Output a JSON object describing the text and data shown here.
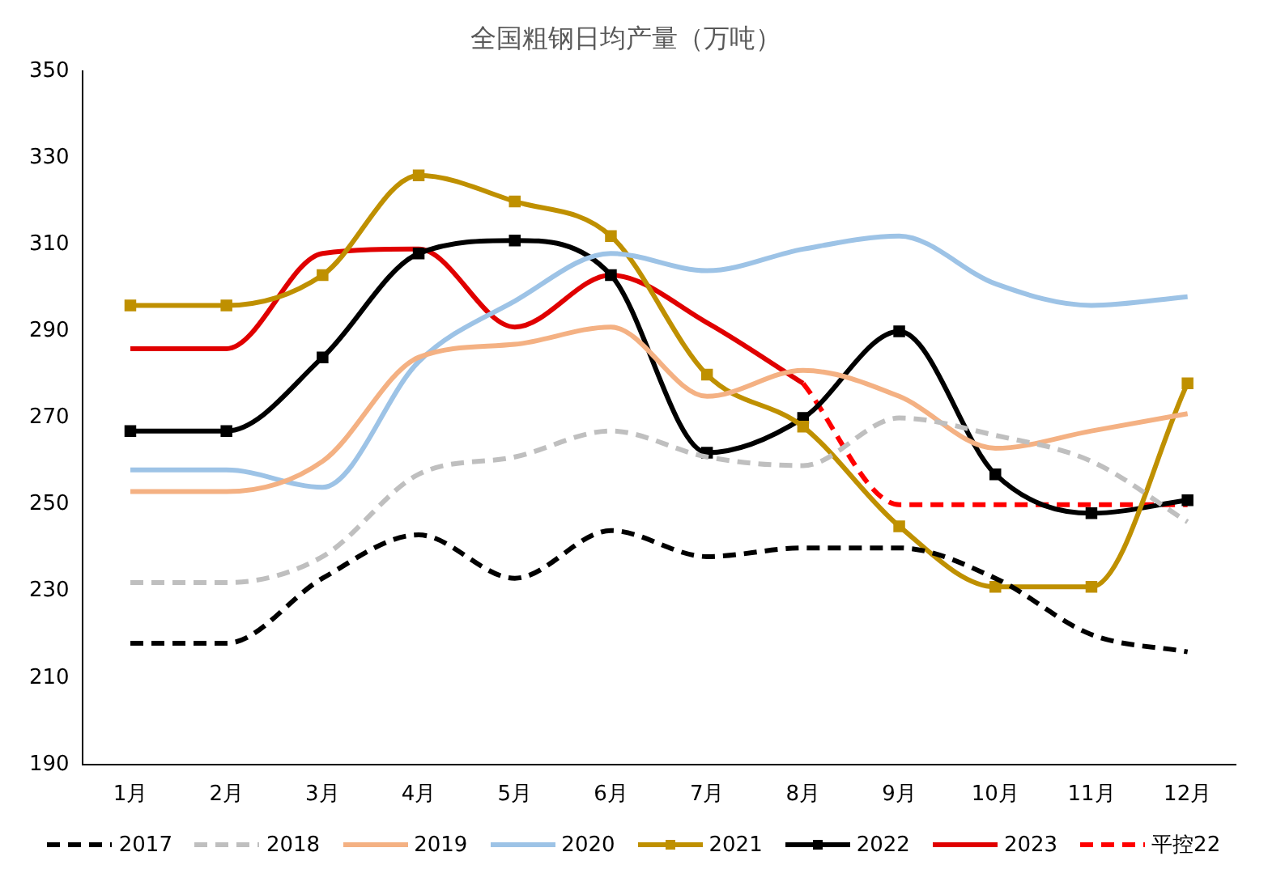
{
  "chart_data": {
    "type": "line",
    "title": "全国粗钢日均产量（万吨）",
    "categories": [
      "1月",
      "2月",
      "3月",
      "4月",
      "5月",
      "6月",
      "7月",
      "8月",
      "9月",
      "10月",
      "11月",
      "12月"
    ],
    "series": [
      {
        "name": "2017",
        "color": "#000000",
        "line_style": "dashed",
        "values": [
          218,
          218,
          233,
          243,
          233,
          244,
          238,
          240,
          240,
          233,
          220,
          216
        ]
      },
      {
        "name": "2018",
        "color": "#bfbfbf",
        "line_style": "dashed",
        "values": [
          232,
          232,
          238,
          257,
          261,
          267,
          261,
          259,
          270,
          266,
          260,
          246
        ]
      },
      {
        "name": "2019",
        "color": "#f4b183",
        "values": [
          253,
          253,
          260,
          284,
          287,
          291,
          275,
          281,
          275,
          263,
          267,
          271
        ]
      },
      {
        "name": "2020",
        "color": "#9dc3e6",
        "values": [
          258,
          258,
          254,
          283,
          297,
          308,
          304,
          309,
          312,
          301,
          296,
          298
        ]
      },
      {
        "name": "2021",
        "color": "#bf9000",
        "marker": "square",
        "values": [
          296,
          296,
          303,
          326,
          320,
          312,
          280,
          268,
          245,
          231,
          231,
          278
        ]
      },
      {
        "name": "2022",
        "color": "#000000",
        "marker": "square",
        "values": [
          267,
          267,
          284,
          308,
          311,
          303,
          262,
          270,
          290,
          257,
          248,
          251
        ]
      },
      {
        "name": "2023",
        "color": "#e00000",
        "values": [
          286,
          286,
          308,
          309,
          291,
          303,
          292,
          278,
          null,
          null,
          null,
          null
        ]
      },
      {
        "name": "平控22",
        "color": "#ff0000",
        "line_style": "dashed",
        "values": [
          null,
          null,
          null,
          null,
          null,
          null,
          null,
          278,
          250,
          250,
          250,
          250
        ]
      }
    ],
    "ylim": [
      190,
      350
    ],
    "yticks": [
      190,
      210,
      230,
      250,
      270,
      290,
      310,
      330,
      350
    ],
    "grid": false,
    "legend": "bottom",
    "marker": "none",
    "line_style": "solid"
  }
}
